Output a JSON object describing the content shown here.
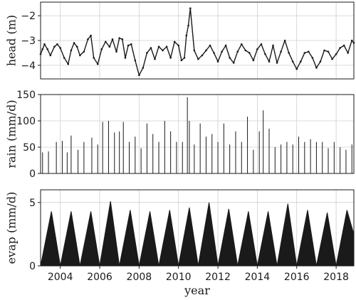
{
  "chart_data": [
    {
      "type": "scatter",
      "ylabel": "head (m)",
      "xlabel": "",
      "xlim": [
        2003.0,
        2018.9
      ],
      "ylim": [
        -4.55,
        -1.45
      ],
      "yticks": [
        -4,
        -3,
        -2
      ],
      "grid": true,
      "color": "#1a1a1a",
      "x": [
        2003.0,
        2003.1,
        2003.2,
        2003.35,
        2003.5,
        2003.7,
        2003.85,
        2004.0,
        2004.2,
        2004.4,
        2004.55,
        2004.7,
        2004.85,
        2005.0,
        2005.2,
        2005.4,
        2005.55,
        2005.7,
        2005.9,
        2006.1,
        2006.3,
        2006.5,
        2006.65,
        2006.85,
        2007.0,
        2007.15,
        2007.3,
        2007.45,
        2007.6,
        2007.8,
        2008.0,
        2008.2,
        2008.4,
        2008.6,
        2008.8,
        2009.0,
        2009.2,
        2009.4,
        2009.6,
        2009.8,
        2010.0,
        2010.15,
        2010.3,
        2010.4,
        2010.5,
        2010.6,
        2010.8,
        2011.0,
        2011.2,
        2011.4,
        2011.6,
        2011.8,
        2012.0,
        2012.2,
        2012.4,
        2012.6,
        2012.8,
        2013.0,
        2013.2,
        2013.4,
        2013.6,
        2013.8,
        2014.0,
        2014.2,
        2014.4,
        2014.6,
        2014.8,
        2015.0,
        2015.2,
        2015.4,
        2015.6,
        2015.8,
        2016.0,
        2016.2,
        2016.4,
        2016.6,
        2016.8,
        2017.0,
        2017.2,
        2017.4,
        2017.6,
        2017.8,
        2018.0,
        2018.2,
        2018.4,
        2018.6,
        2018.8,
        2018.9
      ],
      "y": [
        -3.55,
        -3.35,
        -3.15,
        -3.35,
        -3.6,
        -3.25,
        -3.15,
        -3.3,
        -3.7,
        -3.95,
        -3.4,
        -3.1,
        -3.25,
        -3.6,
        -3.45,
        -2.95,
        -2.8,
        -3.7,
        -3.95,
        -3.35,
        -3.05,
        -3.25,
        -2.95,
        -3.45,
        -2.9,
        -2.95,
        -3.7,
        -3.2,
        -3.15,
        -3.8,
        -4.4,
        -4.1,
        -3.5,
        -3.3,
        -3.75,
        -3.25,
        -3.4,
        -3.25,
        -3.7,
        -3.05,
        -3.2,
        -3.8,
        -3.7,
        -2.8,
        -2.4,
        -1.7,
        -3.4,
        -3.75,
        -3.6,
        -3.4,
        -3.2,
        -3.5,
        -3.85,
        -3.45,
        -3.2,
        -3.7,
        -3.9,
        -3.45,
        -3.15,
        -3.4,
        -3.5,
        -3.8,
        -3.35,
        -3.15,
        -3.55,
        -3.85,
        -3.2,
        -3.9,
        -3.45,
        -3.0,
        -3.5,
        -3.85,
        -4.15,
        -3.85,
        -3.5,
        -3.45,
        -3.7,
        -4.1,
        -3.85,
        -3.4,
        -3.45,
        -3.75,
        -3.55,
        -3.3,
        -3.2,
        -3.5,
        -3.0,
        -3.1
      ]
    },
    {
      "type": "bar",
      "ylabel": "rain (mm/d)",
      "xlabel": "",
      "xlim": [
        2003.0,
        2018.9
      ],
      "ylim": [
        0,
        150
      ],
      "yticks": [
        0,
        50,
        100,
        150
      ],
      "grid": true,
      "color": "#1a1a1a",
      "x": [
        2003.1,
        2003.4,
        2003.8,
        2004.1,
        2004.35,
        2004.55,
        2004.9,
        2005.2,
        2005.6,
        2005.9,
        2006.15,
        2006.45,
        2006.75,
        2007.0,
        2007.2,
        2007.5,
        2007.8,
        2008.1,
        2008.4,
        2008.7,
        2009.0,
        2009.3,
        2009.6,
        2009.9,
        2010.2,
        2010.45,
        2010.55,
        2010.8,
        2011.1,
        2011.4,
        2011.7,
        2012.0,
        2012.3,
        2012.6,
        2012.9,
        2013.2,
        2013.5,
        2013.8,
        2014.1,
        2014.3,
        2014.6,
        2014.9,
        2015.2,
        2015.5,
        2015.8,
        2016.1,
        2016.4,
        2016.7,
        2017.0,
        2017.3,
        2017.6,
        2017.9,
        2018.2,
        2018.5,
        2018.8
      ],
      "values": [
        40,
        42,
        60,
        62,
        40,
        72,
        45,
        60,
        68,
        55,
        98,
        100,
        78,
        80,
        98,
        60,
        70,
        48,
        95,
        75,
        60,
        100,
        80,
        60,
        60,
        145,
        100,
        55,
        95,
        70,
        75,
        60,
        95,
        55,
        80,
        60,
        108,
        45,
        80,
        120,
        85,
        50,
        55,
        60,
        55,
        70,
        60,
        65,
        60,
        60,
        48,
        60,
        50,
        45,
        55
      ]
    },
    {
      "type": "area",
      "ylabel": "evap (mm/d)",
      "xlabel": "year",
      "xlim": [
        2003.0,
        2018.9
      ],
      "ylim": [
        0,
        6
      ],
      "yticks": [
        0,
        5
      ],
      "xticks": [
        2004,
        2006,
        2008,
        2010,
        2012,
        2014,
        2016,
        2018
      ],
      "grid": true,
      "color": "#1a1a1a",
      "x": [
        2003.0,
        2003.55,
        2004.0,
        2004.55,
        2005.0,
        2005.55,
        2006.0,
        2006.55,
        2007.0,
        2007.55,
        2008.0,
        2008.55,
        2009.0,
        2009.55,
        2010.0,
        2010.55,
        2011.0,
        2011.55,
        2012.0,
        2012.55,
        2013.0,
        2013.55,
        2014.0,
        2014.55,
        2015.0,
        2015.55,
        2016.0,
        2016.55,
        2017.0,
        2017.55,
        2018.0,
        2018.55,
        2018.9
      ],
      "values": [
        0.0,
        4.3,
        0.0,
        4.3,
        0.0,
        4.3,
        0.0,
        5.1,
        0.0,
        4.4,
        0.0,
        4.3,
        0.0,
        4.4,
        0.0,
        4.6,
        0.0,
        5.0,
        0.0,
        4.5,
        0.0,
        4.3,
        0.0,
        4.3,
        0.0,
        4.9,
        0.0,
        4.4,
        0.0,
        4.2,
        0.0,
        4.4,
        2.5
      ]
    }
  ]
}
